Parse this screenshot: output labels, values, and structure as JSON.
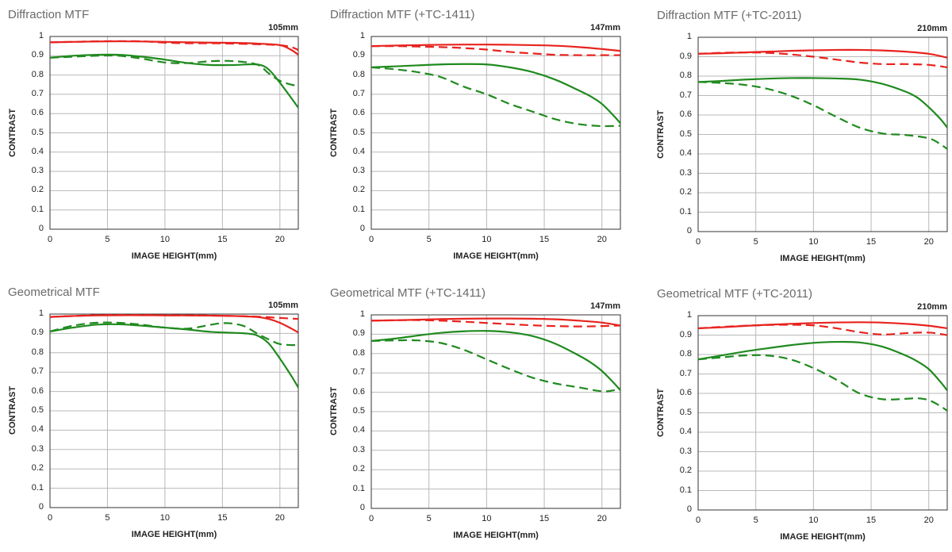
{
  "colors": {
    "sagittal_red": "#e8231f",
    "meridional_green": "#208a1f",
    "grid": "#b8b8b8",
    "frame": "#333333"
  },
  "chart_data": [
    {
      "type": "line",
      "title": "Diffraction MTF",
      "focal_length": "105mm",
      "xlabel": "IMAGE HEIGHT(mm)",
      "ylabel": "CONTRAST",
      "xlim": [
        0,
        21.6
      ],
      "ylim": [
        0,
        1
      ],
      "xticks": [
        "0",
        "5",
        "10",
        "15",
        "20"
      ],
      "yticks": [
        "0",
        "0.1",
        "0.2",
        "0.3",
        "0.4",
        "0.5",
        "0.6",
        "0.7",
        "0.8",
        "0.9",
        "1"
      ],
      "grid": true,
      "series": [
        {
          "color": "red",
          "style": "solid",
          "x": [
            0,
            2,
            4,
            6,
            8,
            10,
            12,
            14,
            16,
            18,
            20,
            21,
            21.6
          ],
          "y": [
            0.97,
            0.972,
            0.974,
            0.975,
            0.974,
            0.972,
            0.97,
            0.968,
            0.967,
            0.963,
            0.955,
            0.93,
            0.905
          ]
        },
        {
          "color": "red",
          "style": "dashed",
          "x": [
            0,
            2,
            4,
            6,
            8,
            10,
            12,
            14,
            16,
            18,
            20,
            21,
            21.6
          ],
          "y": [
            0.97,
            0.972,
            0.975,
            0.976,
            0.975,
            0.968,
            0.965,
            0.965,
            0.963,
            0.96,
            0.955,
            0.945,
            0.93
          ]
        },
        {
          "color": "green",
          "style": "solid",
          "x": [
            0,
            2,
            4,
            6,
            8,
            10,
            12,
            14,
            16,
            18,
            19,
            20,
            21,
            21.6
          ],
          "y": [
            0.89,
            0.9,
            0.905,
            0.905,
            0.895,
            0.88,
            0.862,
            0.852,
            0.852,
            0.855,
            0.83,
            0.76,
            0.68,
            0.63
          ]
        },
        {
          "color": "green",
          "style": "dashed",
          "x": [
            0,
            2,
            4,
            6,
            8,
            10,
            12,
            14,
            16,
            18,
            19,
            20,
            21,
            21.6
          ],
          "y": [
            0.89,
            0.895,
            0.9,
            0.9,
            0.885,
            0.865,
            0.862,
            0.872,
            0.872,
            0.855,
            0.81,
            0.77,
            0.75,
            0.745
          ]
        }
      ]
    },
    {
      "type": "line",
      "title": "Diffraction MTF (+TC-1411)",
      "focal_length": "147mm",
      "xlabel": "IMAGE HEIGHT(mm)",
      "ylabel": "CONTRAST",
      "xlim": [
        0,
        21.6
      ],
      "ylim": [
        0,
        1
      ],
      "xticks": [
        "0",
        "5",
        "10",
        "15",
        "20"
      ],
      "yticks": [
        "0",
        "0.1",
        "0.2",
        "0.3",
        "0.4",
        "0.5",
        "0.6",
        "0.7",
        "0.8",
        "0.9",
        "1"
      ],
      "grid": true,
      "series": [
        {
          "color": "red",
          "style": "solid",
          "x": [
            0,
            2,
            4,
            6,
            8,
            10,
            12,
            14,
            16,
            18,
            20,
            21.6
          ],
          "y": [
            0.95,
            0.953,
            0.955,
            0.957,
            0.958,
            0.958,
            0.957,
            0.955,
            0.952,
            0.945,
            0.935,
            0.925
          ]
        },
        {
          "color": "red",
          "style": "dashed",
          "x": [
            0,
            2,
            4,
            6,
            8,
            10,
            12,
            14,
            16,
            18,
            20,
            21.6
          ],
          "y": [
            0.95,
            0.95,
            0.948,
            0.945,
            0.94,
            0.932,
            0.92,
            0.912,
            0.905,
            0.903,
            0.903,
            0.903
          ]
        },
        {
          "color": "green",
          "style": "solid",
          "x": [
            0,
            2,
            4,
            6,
            8,
            10,
            12,
            14,
            16,
            18,
            19,
            20,
            21,
            21.6
          ],
          "y": [
            0.84,
            0.845,
            0.85,
            0.855,
            0.857,
            0.855,
            0.84,
            0.815,
            0.775,
            0.72,
            0.69,
            0.65,
            0.59,
            0.55
          ]
        },
        {
          "color": "green",
          "style": "dashed",
          "x": [
            0,
            2,
            4,
            6,
            8,
            10,
            12,
            14,
            16,
            18,
            20,
            21.6
          ],
          "y": [
            0.84,
            0.83,
            0.815,
            0.79,
            0.74,
            0.7,
            0.65,
            0.61,
            0.57,
            0.545,
            0.535,
            0.537
          ]
        }
      ]
    },
    {
      "type": "line",
      "title": "Diffraction MTF (+TC-2011)",
      "focal_length": "210mm",
      "xlabel": "IMAGE HEIGHT(mm)",
      "ylabel": "CONTRAST",
      "xlim": [
        0,
        21.6
      ],
      "ylim": [
        0,
        1
      ],
      "xticks": [
        "0",
        "5",
        "10",
        "15",
        "20"
      ],
      "yticks": [
        "0",
        "0.1",
        "0.2",
        "0.3",
        "0.4",
        "0.5",
        "0.6",
        "0.7",
        "0.8",
        "0.9",
        "1"
      ],
      "grid": true,
      "series": [
        {
          "color": "red",
          "style": "solid",
          "x": [
            0,
            2,
            4,
            6,
            8,
            10,
            12,
            14,
            16,
            18,
            20,
            21.6
          ],
          "y": [
            0.915,
            0.918,
            0.922,
            0.926,
            0.93,
            0.933,
            0.935,
            0.935,
            0.932,
            0.926,
            0.915,
            0.895
          ]
        },
        {
          "color": "red",
          "style": "dashed",
          "x": [
            0,
            2,
            4,
            6,
            8,
            10,
            12,
            14,
            16,
            18,
            20,
            21.6
          ],
          "y": [
            0.915,
            0.92,
            0.922,
            0.92,
            0.912,
            0.9,
            0.885,
            0.87,
            0.862,
            0.862,
            0.858,
            0.845
          ]
        },
        {
          "color": "green",
          "style": "solid",
          "x": [
            0,
            2,
            4,
            6,
            8,
            10,
            12,
            14,
            16,
            18,
            19,
            20,
            21,
            21.6
          ],
          "y": [
            0.77,
            0.775,
            0.782,
            0.787,
            0.79,
            0.79,
            0.788,
            0.782,
            0.76,
            0.72,
            0.69,
            0.64,
            0.58,
            0.535
          ]
        },
        {
          "color": "green",
          "style": "dashed",
          "x": [
            0,
            2,
            4,
            6,
            8,
            10,
            12,
            14,
            16,
            18,
            20,
            21,
            21.6
          ],
          "y": [
            0.77,
            0.765,
            0.755,
            0.735,
            0.7,
            0.65,
            0.59,
            0.535,
            0.505,
            0.497,
            0.48,
            0.45,
            0.425
          ]
        }
      ]
    },
    {
      "type": "line",
      "title": "Geometrical MTF",
      "focal_length": "105mm",
      "xlabel": "IMAGE HEIGHT(mm)",
      "ylabel": "CONTRAST",
      "xlim": [
        0,
        21.6
      ],
      "ylim": [
        0,
        1
      ],
      "xticks": [
        "0",
        "5",
        "10",
        "15",
        "20"
      ],
      "yticks": [
        "0",
        "0.1",
        "0.2",
        "0.3",
        "0.4",
        "0.5",
        "0.6",
        "0.7",
        "0.8",
        "0.9",
        "1"
      ],
      "grid": true,
      "series": [
        {
          "color": "red",
          "style": "solid",
          "x": [
            0,
            2,
            4,
            6,
            8,
            10,
            12,
            14,
            16,
            18,
            19,
            20,
            21,
            21.6
          ],
          "y": [
            0.985,
            0.99,
            0.993,
            0.994,
            0.994,
            0.993,
            0.993,
            0.992,
            0.99,
            0.985,
            0.975,
            0.955,
            0.925,
            0.905
          ]
        },
        {
          "color": "red",
          "style": "dashed",
          "x": [
            0,
            2,
            4,
            6,
            8,
            10,
            12,
            14,
            16,
            18,
            20,
            21.6
          ],
          "y": [
            0.985,
            0.99,
            0.994,
            0.995,
            0.995,
            0.994,
            0.993,
            0.992,
            0.99,
            0.987,
            0.98,
            0.975
          ]
        },
        {
          "color": "green",
          "style": "solid",
          "x": [
            0,
            2,
            4,
            6,
            8,
            10,
            12,
            14,
            16,
            17,
            18,
            19,
            20,
            21,
            21.6
          ],
          "y": [
            0.91,
            0.93,
            0.945,
            0.947,
            0.94,
            0.93,
            0.92,
            0.908,
            0.903,
            0.9,
            0.89,
            0.85,
            0.77,
            0.68,
            0.62
          ]
        },
        {
          "color": "green",
          "style": "dashed",
          "x": [
            0,
            2,
            4,
            6,
            8,
            10,
            12,
            14,
            15,
            16,
            17,
            18,
            19,
            20,
            21,
            21.6
          ],
          "y": [
            0.91,
            0.94,
            0.955,
            0.955,
            0.945,
            0.93,
            0.925,
            0.945,
            0.953,
            0.95,
            0.935,
            0.9,
            0.87,
            0.845,
            0.84,
            0.84
          ]
        }
      ]
    },
    {
      "type": "line",
      "title": "Geometrical MTF (+TC-1411)",
      "focal_length": "147mm",
      "xlabel": "IMAGE HEIGHT(mm)",
      "ylabel": "CONTRAST",
      "xlim": [
        0,
        21.6
      ],
      "ylim": [
        0,
        1
      ],
      "xticks": [
        "0",
        "5",
        "10",
        "15",
        "20"
      ],
      "yticks": [
        "0",
        "0.1",
        "0.2",
        "0.3",
        "0.4",
        "0.5",
        "0.6",
        "0.7",
        "0.8",
        "0.9",
        "1"
      ],
      "grid": true,
      "series": [
        {
          "color": "red",
          "style": "solid",
          "x": [
            0,
            2,
            4,
            6,
            8,
            10,
            12,
            14,
            16,
            18,
            20,
            21.6
          ],
          "y": [
            0.97,
            0.972,
            0.975,
            0.978,
            0.98,
            0.981,
            0.981,
            0.98,
            0.977,
            0.97,
            0.96,
            0.945
          ]
        },
        {
          "color": "red",
          "style": "dashed",
          "x": [
            0,
            2,
            4,
            6,
            8,
            10,
            12,
            14,
            16,
            18,
            20,
            21.6
          ],
          "y": [
            0.97,
            0.972,
            0.973,
            0.97,
            0.965,
            0.958,
            0.952,
            0.946,
            0.942,
            0.94,
            0.942,
            0.945
          ]
        },
        {
          "color": "green",
          "style": "solid",
          "x": [
            0,
            2,
            4,
            6,
            8,
            10,
            12,
            14,
            16,
            18,
            19,
            20,
            21,
            21.6
          ],
          "y": [
            0.865,
            0.877,
            0.893,
            0.907,
            0.915,
            0.917,
            0.91,
            0.89,
            0.85,
            0.79,
            0.755,
            0.71,
            0.65,
            0.61
          ]
        },
        {
          "color": "green",
          "style": "dashed",
          "x": [
            0,
            2,
            4,
            6,
            8,
            10,
            12,
            14,
            16,
            18,
            20,
            21,
            21.6
          ],
          "y": [
            0.865,
            0.868,
            0.868,
            0.855,
            0.82,
            0.77,
            0.72,
            0.675,
            0.645,
            0.625,
            0.605,
            0.61,
            0.62
          ]
        }
      ]
    },
    {
      "type": "line",
      "title": "Geometrical MTF (+TC-2011)",
      "focal_length": "210mm",
      "xlabel": "IMAGE HEIGHT(mm)",
      "ylabel": "CONTRAST",
      "xlim": [
        0,
        21.6
      ],
      "ylim": [
        0,
        1
      ],
      "xticks": [
        "0",
        "5",
        "10",
        "15",
        "20"
      ],
      "yticks": [
        "0",
        "0.1",
        "0.2",
        "0.3",
        "0.4",
        "0.5",
        "0.6",
        "0.7",
        "0.8",
        "0.9",
        "1"
      ],
      "grid": true,
      "series": [
        {
          "color": "red",
          "style": "solid",
          "x": [
            0,
            2,
            4,
            6,
            8,
            10,
            12,
            14,
            16,
            18,
            20,
            21.6
          ],
          "y": [
            0.935,
            0.94,
            0.947,
            0.953,
            0.958,
            0.962,
            0.965,
            0.966,
            0.964,
            0.958,
            0.948,
            0.935
          ]
        },
        {
          "color": "red",
          "style": "dashed",
          "x": [
            0,
            2,
            4,
            6,
            8,
            10,
            12,
            14,
            16,
            18,
            20,
            21.6
          ],
          "y": [
            0.935,
            0.942,
            0.948,
            0.952,
            0.953,
            0.95,
            0.935,
            0.915,
            0.903,
            0.91,
            0.913,
            0.9
          ]
        },
        {
          "color": "green",
          "style": "solid",
          "x": [
            0,
            2,
            4,
            6,
            8,
            10,
            12,
            14,
            16,
            18,
            19,
            20,
            21,
            21.6
          ],
          "y": [
            0.775,
            0.795,
            0.815,
            0.832,
            0.848,
            0.86,
            0.865,
            0.862,
            0.84,
            0.795,
            0.765,
            0.725,
            0.66,
            0.615
          ]
        },
        {
          "color": "green",
          "style": "dashed",
          "x": [
            0,
            2,
            4,
            6,
            8,
            10,
            12,
            14,
            16,
            18,
            19,
            20,
            21,
            21.6
          ],
          "y": [
            0.775,
            0.785,
            0.795,
            0.795,
            0.775,
            0.73,
            0.67,
            0.6,
            0.57,
            0.572,
            0.575,
            0.565,
            0.535,
            0.51
          ]
        }
      ]
    }
  ]
}
